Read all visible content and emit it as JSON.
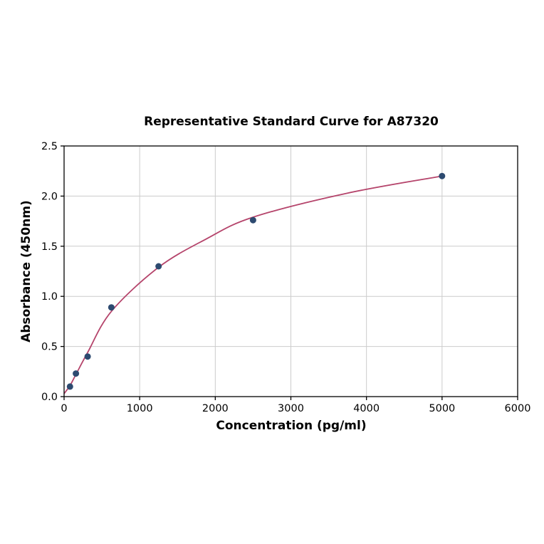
{
  "figure": {
    "background": "#ffffff"
  },
  "chart_data": {
    "type": "scatter",
    "title": "Representative Standard Curve for A87320",
    "xlabel": "Concentration (pg/ml)",
    "ylabel": "Absorbance (450nm)",
    "xlim": [
      0,
      6000
    ],
    "ylim": [
      0,
      2.5
    ],
    "xticks": [
      0,
      1000,
      2000,
      3000,
      4000,
      5000,
      6000
    ],
    "xtick_labels": [
      "0",
      "1000",
      "2000",
      "3000",
      "4000",
      "5000",
      "6000"
    ],
    "yticks": [
      0,
      0.5,
      1.0,
      1.5,
      2.0,
      2.5
    ],
    "ytick_labels": [
      "0.0",
      "0.5",
      "1.0",
      "1.5",
      "2.0",
      "2.5"
    ],
    "grid": true,
    "legend": "none",
    "series": [
      {
        "name": "fit-curve",
        "type": "line",
        "color": "#b5446b",
        "x": [
          0,
          78,
          156,
          312,
          625,
          1250,
          1875,
          2500,
          3750,
          5000
        ],
        "y": [
          0.03,
          0.11,
          0.22,
          0.44,
          0.85,
          1.29,
          1.57,
          1.79,
          2.03,
          2.2
        ]
      },
      {
        "name": "standards",
        "type": "scatter",
        "color": "#2d4a70",
        "x": [
          78,
          156,
          312,
          625,
          1250,
          2500,
          5000
        ],
        "y": [
          0.1,
          0.23,
          0.4,
          0.89,
          1.3,
          1.76,
          2.2
        ]
      }
    ],
    "colors": {
      "grid": "#cccccc",
      "spine": "#000000",
      "tick_text": "#000000"
    }
  }
}
